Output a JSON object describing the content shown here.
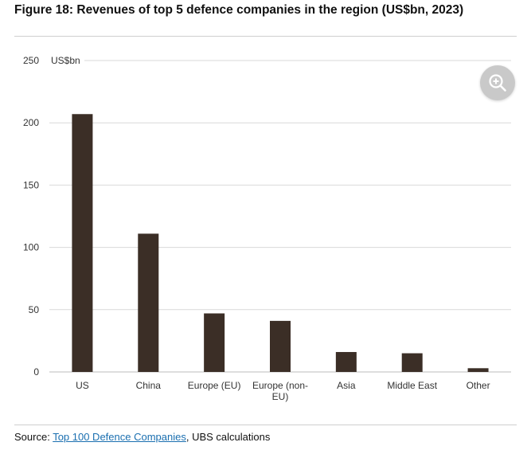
{
  "figure": {
    "title": "Figure 18: Revenues of top 5 defence companies in the region (US$bn, 2023)"
  },
  "chart_data": {
    "type": "bar",
    "title": "",
    "ylabel": "US$bn",
    "xlabel": "",
    "ylim": [
      0,
      250
    ],
    "yticks": [
      0,
      50,
      100,
      150,
      200,
      250
    ],
    "grid": true,
    "categories": [
      "US",
      "China",
      "Europe (EU)",
      "Europe (non-EU)",
      "Asia",
      "Middle East",
      "Other"
    ],
    "category_lines": [
      [
        "US"
      ],
      [
        "China"
      ],
      [
        "Europe (EU)"
      ],
      [
        "Europe (non-",
        "EU)"
      ],
      [
        "Asia"
      ],
      [
        "Middle East"
      ],
      [
        "Other"
      ]
    ],
    "values": [
      207,
      111,
      47,
      41,
      16,
      15,
      3
    ],
    "bar_color": "#3b2e26",
    "grid_color": "#d9d9d9"
  },
  "zoom": {
    "icon": "zoom-in-icon",
    "background": "#c9c9c9"
  },
  "source": {
    "prefix": "Source: ",
    "link_text": "Top 100 Defence Companies",
    "suffix": ", UBS calculations",
    "link_color": "#1a6fb0"
  }
}
